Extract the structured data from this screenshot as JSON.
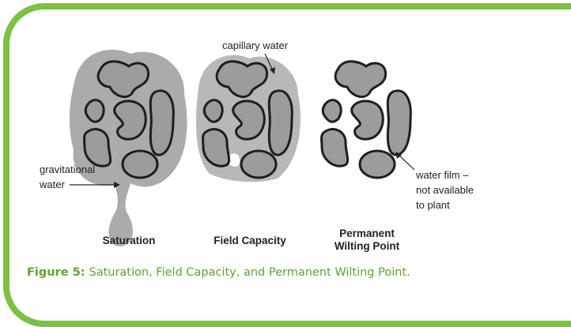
{
  "labels": {
    "capillary_water": "capillary water",
    "gravitational_water": [
      "gravitational",
      "water"
    ],
    "water_film": [
      "water film –",
      "not available",
      "to plant"
    ]
  },
  "stages": [
    [
      "Saturation"
    ],
    [
      "Field Capacity"
    ],
    [
      "Permanent",
      "Wilting Point"
    ]
  ],
  "caption": {
    "label": "Figure 5:",
    "text": "Saturation, Field Capacity, and Permanent Wilting Point."
  }
}
